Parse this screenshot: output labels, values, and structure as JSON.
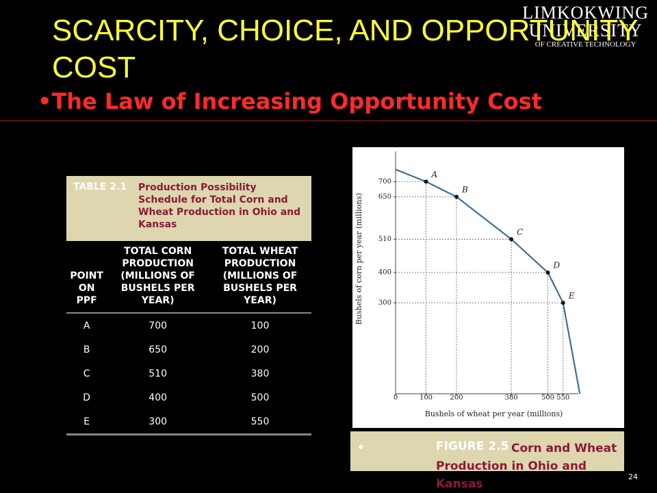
{
  "logo": {
    "line1": "LIMKOKWING",
    "line2": "UNIVERSITY",
    "line3": "OF CREATIVE TECHNOLOGY"
  },
  "header": {
    "title": "SCARCITY, CHOICE, AND OPPORTUNITY COST",
    "subtitle": "The Law of Increasing Opportunity Cost"
  },
  "table": {
    "label": "TABLE 2.1",
    "caption": "Production Possibility Schedule for Total Corn and Wheat Production in Ohio and Kansas",
    "columns": [
      "POINT ON PPF",
      "TOTAL CORN PRODUCTION (MILLIONS OF BUSHELS PER YEAR)",
      "TOTAL WHEAT PRODUCTION (MILLIONS OF BUSHELS PER YEAR)"
    ],
    "rows": [
      [
        "A",
        "700",
        "100"
      ],
      [
        "B",
        "650",
        "200"
      ],
      [
        "C",
        "510",
        "380"
      ],
      [
        "D",
        "400",
        "500"
      ],
      [
        "E",
        "300",
        "550"
      ]
    ]
  },
  "chart_data": {
    "type": "line",
    "x_label": "Bushels of wheat per year (millions)",
    "y_label": "Bushels of corn per year (millions)",
    "x": [
      0,
      100,
      200,
      380,
      500,
      550,
      605
    ],
    "series": [
      {
        "name": "PPF",
        "color": "#3a6f9a",
        "values": [
          740,
          700,
          650,
          510,
          400,
          300,
          0
        ]
      }
    ],
    "point_labels": [
      null,
      "A",
      "B",
      "C",
      "D",
      "E",
      null
    ],
    "xlim": [
      0,
      600
    ],
    "ylim": [
      0,
      800
    ],
    "xticks": [
      0,
      100,
      200,
      380,
      500,
      550
    ],
    "yticks": [
      300,
      400,
      510,
      650,
      700
    ]
  },
  "figure": {
    "label": "FIGURE 2.5",
    "caption": "Corn and Wheat Production in Ohio and Kansas"
  },
  "page_number": "24"
}
